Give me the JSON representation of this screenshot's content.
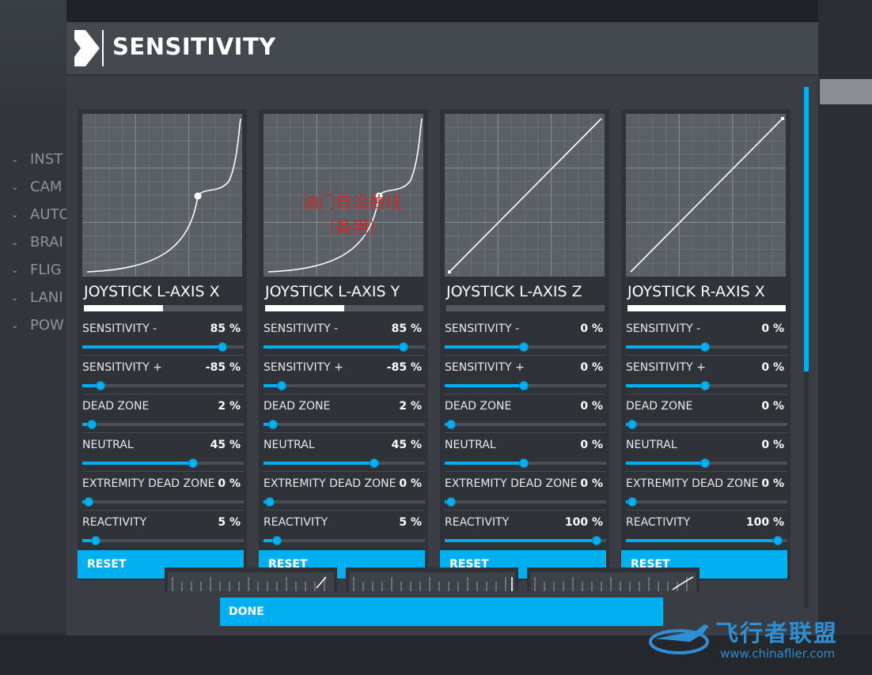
{
  "dialog": {
    "title": "SENSITIVITY"
  },
  "side_menu": [
    "INST",
    "CAM",
    "AUTO",
    "BRAI",
    "FLIG",
    "LANI",
    "POW"
  ],
  "setting_labels": [
    "SENSITIVITY -",
    "SENSITIVITY +",
    "DEAD ZONE",
    "NEUTRAL",
    "EXTREMITY DEAD ZONE",
    "REACTIVITY"
  ],
  "axes": [
    {
      "name": "JOYSTICK L-AXIS X",
      "input_level": 0.5,
      "curve": "s-curve",
      "settings": [
        {
          "value": "85 %",
          "level": 0.9
        },
        {
          "value": "-85 %",
          "level": 0.1
        },
        {
          "value": "2 %",
          "level": 0.04
        },
        {
          "value": "45 %",
          "level": 0.71
        },
        {
          "value": "0 %",
          "level": 0.02
        },
        {
          "value": "5 %",
          "level": 0.07
        }
      ],
      "reset_label": "RESET"
    },
    {
      "name": "JOYSTICK L-AXIS Y",
      "input_level": 0.5,
      "curve": "s-curve",
      "settings": [
        {
          "value": "85 %",
          "level": 0.9
        },
        {
          "value": "-85 %",
          "level": 0.1
        },
        {
          "value": "2 %",
          "level": 0.04
        },
        {
          "value": "45 %",
          "level": 0.71
        },
        {
          "value": "0 %",
          "level": 0.02
        },
        {
          "value": "5 %",
          "level": 0.07
        }
      ],
      "reset_label": "RESET"
    },
    {
      "name": "JOYSTICK L-AXIS Z",
      "input_level": 0.0,
      "curve": "linear",
      "settings": [
        {
          "value": "0 %",
          "level": 0.5
        },
        {
          "value": "0 %",
          "level": 0.5
        },
        {
          "value": "0 %",
          "level": 0.02
        },
        {
          "value": "0 %",
          "level": 0.5
        },
        {
          "value": "0 %",
          "level": 0.02
        },
        {
          "value": "100 %",
          "level": 0.98
        }
      ],
      "reset_label": "RESET"
    },
    {
      "name": "JOYSTICK R-AXIS X",
      "input_level": 1.0,
      "curve": "linear",
      "settings": [
        {
          "value": "0 %",
          "level": 0.5
        },
        {
          "value": "0 %",
          "level": 0.5
        },
        {
          "value": "0 %",
          "level": 0.02
        },
        {
          "value": "0 %",
          "level": 0.5
        },
        {
          "value": "0 %",
          "level": 0.02
        },
        {
          "value": "100 %",
          "level": 0.98
        }
      ],
      "reset_label": "RESET"
    }
  ],
  "overlay_note": [
    "油门自设曲线",
    "（备用）"
  ],
  "done_label": "DONE",
  "watermark": {
    "name": "飞行者联盟",
    "url": "www.chinaflier.com"
  },
  "colors": {
    "accent": "#00aff0",
    "graph_bg": "#5b5f66",
    "note": "#cc2a2a"
  }
}
